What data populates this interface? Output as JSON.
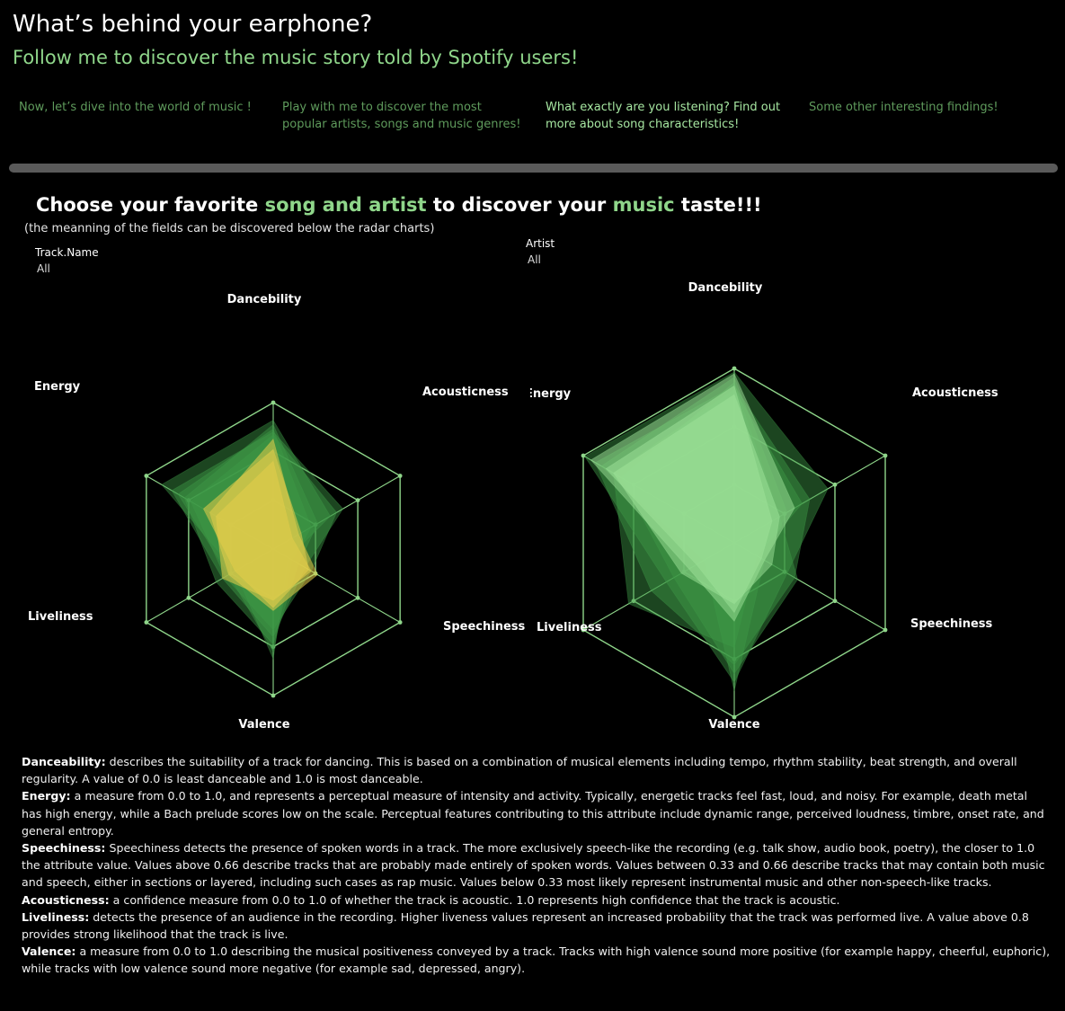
{
  "header": {
    "title": "What’s behind your earphone?",
    "subtitle": "Follow me to discover the music story told by Spotify users!"
  },
  "nav": [
    {
      "line1": "Now, let’s dive into the world of music !",
      "line2": "",
      "active": false
    },
    {
      "line1": "Play with me to discover the most",
      "line2": "popular artists, songs and music genres!",
      "active": false
    },
    {
      "line1": "What exactly are you listening? Find out",
      "line2": "more about song characteristics!",
      "active": true
    },
    {
      "line1": "Some other interesting findings!",
      "line2": "",
      "active": false
    }
  ],
  "headline": {
    "part1": "Choose your favorite ",
    "hl1": "song and artist",
    "part2": " to discover your ",
    "hl2": "music",
    "part3": " taste!!!"
  },
  "note": "(the meanning of the fields can be discovered below the radar charts)",
  "filters": {
    "track": {
      "label": "Track.Name",
      "value": "All"
    },
    "artist": {
      "label": "Artist",
      "value": "All"
    }
  },
  "colors": {
    "accent": "#8fd68a",
    "grid": "#8fd68a",
    "left_fill": "#e6cd4a",
    "right_fill": "#9fe39a",
    "green_fill": "#3f9a48"
  },
  "chart_data": [
    {
      "type": "radar",
      "name": "Track radar",
      "axes": [
        "Dancebility",
        "Acousticness",
        "Speechiness",
        "Valence",
        "Liveliness",
        "Energy"
      ],
      "range": [
        0,
        1
      ],
      "grid_rings": 3,
      "series_green": [
        [
          0.88,
          0.45,
          0.12,
          0.75,
          0.3,
          0.88
        ],
        [
          0.8,
          0.55,
          0.25,
          0.6,
          0.4,
          0.8
        ],
        [
          0.85,
          0.35,
          0.2,
          0.65,
          0.45,
          0.7
        ],
        [
          0.78,
          0.5,
          0.3,
          0.55,
          0.38,
          0.65
        ],
        [
          0.82,
          0.3,
          0.15,
          0.7,
          0.35,
          0.75
        ]
      ],
      "series_yellow": [
        [
          0.75,
          0.2,
          0.35,
          0.42,
          0.35,
          0.5
        ],
        [
          0.6,
          0.15,
          0.3,
          0.35,
          0.4,
          0.45
        ],
        [
          0.68,
          0.22,
          0.28,
          0.4,
          0.3,
          0.55
        ]
      ]
    },
    {
      "type": "radar",
      "name": "Artist radar",
      "axes": [
        "Dancebility",
        "Acousticness",
        "Speechiness",
        "Valence",
        "Liveliness",
        "Energy"
      ],
      "range": [
        0,
        1
      ],
      "grid_rings": 3,
      "series_green": [
        [
          0.98,
          0.62,
          0.35,
          0.8,
          0.45,
          0.99
        ],
        [
          0.9,
          0.5,
          0.4,
          0.7,
          0.55,
          0.92
        ],
        [
          0.95,
          0.35,
          0.2,
          0.85,
          0.2,
          0.88
        ],
        [
          0.88,
          0.45,
          0.15,
          0.6,
          0.7,
          0.8
        ],
        [
          0.92,
          0.3,
          0.42,
          0.75,
          0.4,
          0.75
        ]
      ],
      "series_light": [
        [
          0.97,
          0.4,
          0.2,
          0.45,
          0.3,
          0.95
        ],
        [
          0.9,
          0.25,
          0.18,
          0.4,
          0.25,
          0.85
        ],
        [
          0.85,
          0.3,
          0.25,
          0.35,
          0.35,
          0.8
        ]
      ]
    }
  ],
  "definitions": [
    {
      "term": "Danceability:",
      "text": " describes the suitability of a track for dancing. This is based on a combination of musical elements including tempo, rhythm stability, beat strength, and overall regularity. A value of 0.0 is least danceable and 1.0 is most danceable."
    },
    {
      "term": "Energy:",
      "text": " a measure from 0.0 to 1.0, and represents a perceptual measure of intensity and activity. Typically, energetic tracks feel fast, loud, and noisy. For example, death metal has high energy, while a Bach prelude scores low on the scale. Perceptual features contributing to this attribute include dynamic range, perceived loudness, timbre, onset rate, and general entropy."
    },
    {
      "term": "Speechiness:",
      "text": " Speechiness detects the presence of spoken words in a track. The more exclusively speech-like the recording (e.g. talk show, audio book, poetry), the closer to 1.0 the attribute value. Values above 0.66 describe tracks that are probably made entirely of spoken words. Values between 0.33 and 0.66 describe tracks that may contain both music and speech, either in sections or layered, including such cases as rap music. Values below 0.33 most likely represent instrumental music and other non-speech-like tracks."
    },
    {
      "term": "Acousticness:",
      "text": " a confidence measure from 0.0 to 1.0 of whether the track is acoustic. 1.0 represents high confidence that the track is acoustic."
    },
    {
      "term": "Liveliness:",
      "text": " detects the presence of an audience in the recording. Higher liveness values represent an increased probability that the track was performed live. A value above 0.8 provides strong likelihood that the track is live."
    },
    {
      "term": "Valence:",
      "text": " a measure from 0.0 to 1.0 describing the musical positiveness conveyed by a track. Tracks with high valence sound more positive (for example happy, cheerful, euphoric), while tracks with low valence sound more negative (for example sad, depressed, angry)."
    }
  ]
}
